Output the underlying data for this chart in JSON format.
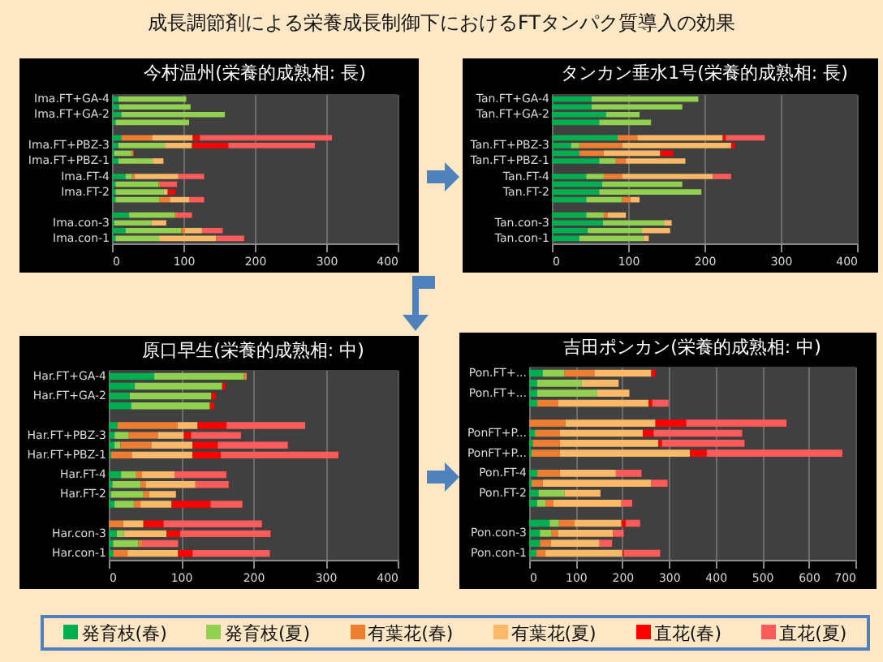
{
  "chart_data": [
    {
      "type": "bar",
      "orientation": "horizontal",
      "stacked": true,
      "title": "今村温州(栄養的成熟相: 長)",
      "annotations": [
        "成長調節剤による栄養成長制御下におけるFTタンパク質導入の効果"
      ],
      "categories": [
        "Ima.FT+GA-4",
        null,
        "Ima.FT+GA-2",
        null,
        null,
        null,
        "Ima.FT+PBZ-3",
        null,
        "Ima.FT+PBZ-1",
        null,
        "Ima.FT-4",
        null,
        "Ima.FT-2",
        null,
        null,
        null,
        "Ima.con-3",
        null,
        "Ima.con-1"
      ],
      "series": [
        {
          "color": "#00b050",
          "values": [
            9,
            10,
            13,
            5,
            null,
            13,
            9,
            3,
            9,
            null,
            19,
            5,
            5,
            5,
            null,
            24,
            3,
            19,
            5
          ]
        },
        {
          "color": "#92d050",
          "values": [
            95,
            100,
            145,
            103,
            null,
            null,
            65,
            24,
            48,
            null,
            9,
            60,
            67,
            61,
            null,
            64,
            52,
            78,
            61
          ]
        },
        {
          "color": "#ed7d31",
          "values": [
            null,
            null,
            null,
            null,
            null,
            43,
            null,
            3,
            null,
            null,
            4,
            3,
            null,
            15,
            null,
            3,
            null,
            5,
            null
          ]
        },
        {
          "color": "#fab968",
          "values": [
            null,
            null,
            null,
            null,
            null,
            57,
            38,
            null,
            15,
            null,
            61,
            null,
            6,
            27,
            null,
            null,
            21,
            24,
            80
          ]
        },
        {
          "color": "#ff0000",
          "values": [
            null,
            null,
            null,
            null,
            null,
            10,
            51,
            null,
            null,
            null,
            null,
            null,
            11,
            null,
            null,
            null,
            null,
            null,
            null
          ]
        },
        {
          "color": "#ff5b5b",
          "values": [
            null,
            null,
            null,
            null,
            null,
            185,
            121,
            null,
            null,
            null,
            36,
            23,
            null,
            21,
            null,
            21,
            null,
            29,
            39
          ]
        }
      ],
      "xlim": [
        0,
        400
      ],
      "xticks": [
        0,
        100,
        200,
        300,
        400
      ],
      "grid": "x"
    },
    {
      "type": "bar",
      "orientation": "horizontal",
      "stacked": true,
      "title": "タンカン垂水1号(栄養的成熟相: 長)",
      "categories": [
        "Tan.FT+GA-4",
        null,
        "Tan.FT+GA-2",
        null,
        null,
        null,
        "Tan.FT+PBZ-3",
        null,
        "Tan.FT+PBZ-1",
        null,
        "Tan.FT-4",
        null,
        "Tan.FT-2",
        null,
        null,
        null,
        "Tan.con-3",
        null,
        "Tan.con-1"
      ],
      "series": [
        {
          "color": "#00b050",
          "values": [
            52,
            52,
            71,
            62,
            null,
            86,
            25,
            36,
            62,
            null,
            45,
            66,
            62,
            45,
            null,
            45,
            67,
            47,
            36
          ]
        },
        {
          "color": "#92d050",
          "values": [
            140,
            119,
            44,
            68,
            null,
            null,
            11,
            null,
            21,
            null,
            23,
            105,
            134,
            47,
            null,
            23,
            80,
            71,
            84
          ]
        },
        {
          "color": "#ed7d31",
          "values": [
            null,
            null,
            null,
            null,
            null,
            26,
            56,
            32,
            14,
            null,
            24,
            null,
            null,
            11,
            null,
            5,
            null,
            null,
            null
          ]
        },
        {
          "color": "#fab968",
          "values": [
            null,
            null,
            null,
            null,
            null,
            112,
            143,
            74,
            78,
            null,
            119,
            null,
            null,
            12,
            null,
            24,
            10,
            37,
            7
          ]
        },
        {
          "color": "#ff0000",
          "values": [
            null,
            null,
            null,
            null,
            null,
            4,
            5,
            17,
            null,
            null,
            null,
            null,
            null,
            null,
            null,
            null,
            null,
            null,
            null
          ]
        },
        {
          "color": "#ff5b5b",
          "values": [
            null,
            null,
            null,
            null,
            null,
            51,
            null,
            null,
            null,
            null,
            24,
            null,
            null,
            null,
            null,
            null,
            null,
            null,
            null
          ]
        }
      ],
      "xlim": [
        0,
        400
      ],
      "xticks": [
        0,
        100,
        200,
        300,
        400
      ],
      "grid": "x"
    },
    {
      "type": "bar",
      "orientation": "horizontal",
      "stacked": true,
      "title": "原口早生(栄養的成熟相: 中)",
      "categories": [
        "Har.FT+GA-4",
        null,
        "Har.FT+GA-2",
        null,
        null,
        null,
        "Har.FT+PBZ-3",
        null,
        "Har.FT+PBZ-1",
        null,
        "Har.FT-4",
        null,
        "Har.FT-2",
        null,
        null,
        null,
        "Har.con-3",
        null,
        "Har.con-1"
      ],
      "series": [
        {
          "color": "#00b050",
          "values": [
            63,
            36,
            29,
            31,
            null,
            12,
            8,
            8,
            3,
            null,
            17,
            5,
            3,
            8,
            null,
            null,
            11,
            6,
            6
          ]
        },
        {
          "color": "#92d050",
          "values": [
            124,
            121,
            113,
            109,
            null,
            null,
            19,
            8,
            null,
            null,
            21,
            39,
            45,
            27,
            null,
            null,
            10,
            35,
            null
          ]
        },
        {
          "color": "#ed7d31",
          "values": [
            4,
            null,
            null,
            null,
            null,
            83,
            41,
            43,
            29,
            null,
            8,
            7,
            8,
            9,
            null,
            20,
            null,
            5,
            20
          ]
        },
        {
          "color": "#fab968",
          "values": [
            null,
            null,
            null,
            null,
            null,
            28,
            36,
            57,
            84,
            null,
            45,
            69,
            37,
            43,
            null,
            28,
            59,
            null,
            70
          ]
        },
        {
          "color": "#ff0000",
          "values": [
            null,
            4,
            6,
            6,
            null,
            40,
            10,
            35,
            39,
            null,
            null,
            null,
            null,
            54,
            null,
            28,
            19,
            null,
            20
          ]
        },
        {
          "color": "#ff5b5b",
          "values": [
            null,
            null,
            null,
            null,
            null,
            109,
            69,
            97,
            163,
            null,
            72,
            46,
            null,
            44,
            null,
            136,
            125,
            50,
            107
          ]
        }
      ],
      "xlim": [
        0,
        400
      ],
      "xticks": [
        0,
        100,
        200,
        300,
        400
      ],
      "grid": "x"
    },
    {
      "type": "bar",
      "orientation": "horizontal",
      "stacked": true,
      "title": "吉田ポンカン(栄養的成熟相: 中)",
      "legend": "bottom",
      "categories": [
        "Pon.FT+...",
        null,
        "Pon.FT+...",
        null,
        null,
        null,
        "PonFT+P...",
        null,
        "PonFT+P...",
        null,
        "Pon.FT-4",
        null,
        "Pon.FT-2",
        null,
        null,
        null,
        "Pon.con-3",
        null,
        "Pon.con-1"
      ],
      "series": [
        {
          "name": "発育枝(春)",
          "color": "#00b050",
          "values": [
            29,
            17,
            17,
            17,
            null,
            null,
            12,
            8,
            5,
            null,
            17,
            5,
            20,
            17,
            null,
            44,
            23,
            23,
            15
          ]
        },
        {
          "name": "発育枝(夏)",
          "color": "#92d050",
          "values": [
            47,
            96,
            128,
            null,
            null,
            null,
            null,
            null,
            null,
            null,
            null,
            null,
            56,
            18,
            null,
            20,
            24,
            null,
            null
          ]
        },
        {
          "name": "有葉花(春)",
          "color": "#ed7d31",
          "values": [
            64,
            null,
            null,
            45,
            null,
            78,
            54,
            58,
            61,
            null,
            49,
            24,
            null,
            17,
            null,
            33,
            15,
            24,
            20
          ]
        },
        {
          "name": "有葉花(夏)",
          "color": "#fab968",
          "values": [
            122,
            79,
            70,
            194,
            null,
            193,
            178,
            211,
            279,
            null,
            120,
            233,
            77,
            146,
            null,
            101,
            118,
            104,
            165
          ]
        },
        {
          "name": "直花(春)",
          "color": "#ff0000",
          "values": [
            8,
            null,
            null,
            8,
            null,
            66,
            23,
            8,
            36,
            null,
            null,
            null,
            null,
            null,
            null,
            9,
            null,
            null,
            3
          ]
        },
        {
          "name": "直花(夏)",
          "color": "#ff5b5b",
          "values": [
            null,
            null,
            null,
            35,
            null,
            215,
            190,
            177,
            291,
            null,
            55,
            35,
            null,
            23,
            null,
            31,
            23,
            27,
            78
          ]
        }
      ],
      "xlim": [
        0,
        700
      ],
      "xticks": [
        0,
        100,
        200,
        300,
        400,
        500,
        600,
        700
      ],
      "grid": "x"
    }
  ]
}
